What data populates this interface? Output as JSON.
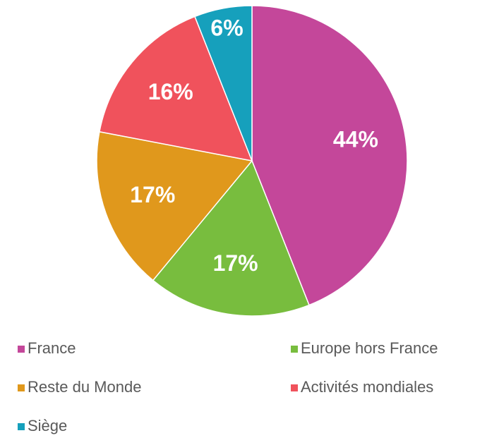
{
  "chart_data": {
    "type": "pie",
    "categories": [
      "France",
      "Europe hors France",
      "Reste du Monde",
      "Activités mondiales",
      "Siège"
    ],
    "values": [
      44,
      17,
      17,
      16,
      6
    ],
    "value_labels": [
      "44%",
      "17%",
      "17%",
      "16%",
      "6%"
    ],
    "colors": [
      "#c4479a",
      "#78bd3e",
      "#e0981c",
      "#f0525c",
      "#16a0bc"
    ],
    "legend": "bottom"
  }
}
